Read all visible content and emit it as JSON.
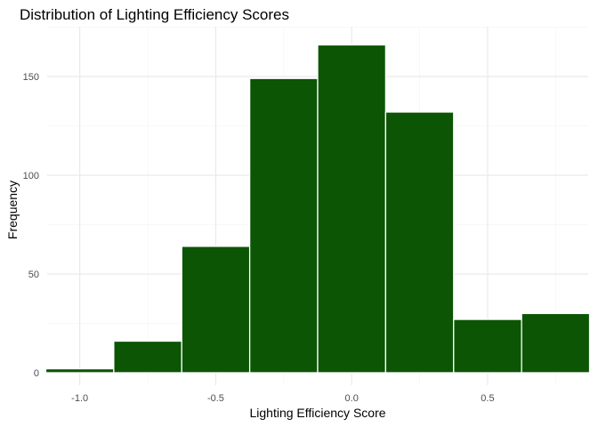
{
  "chart_data": {
    "type": "bar",
    "title": "Distribution of Lighting Efficiency Scores",
    "xlabel": "Lighting Efficiency Score",
    "ylabel": "Frequency",
    "bar_color": "#0b5505",
    "bar_edge_color": "#ffffff",
    "grid": true,
    "xlim": [
      -1.12,
      0.87
    ],
    "ylim": [
      0,
      166
    ],
    "x_ticks": [
      -1.0,
      -0.5,
      0.0,
      0.5
    ],
    "x_tick_labels": [
      "-1.0",
      "-0.5",
      "0.0",
      "0.5"
    ],
    "y_ticks": [
      0,
      50,
      100,
      150
    ],
    "y_tick_labels": [
      "0",
      "50",
      "100",
      "150"
    ],
    "bin_edges": [
      -1.125,
      -0.875,
      -0.625,
      -0.375,
      -0.125,
      0.125,
      0.375,
      0.625,
      0.875
    ],
    "values": [
      2,
      16,
      64,
      149,
      166,
      132,
      27,
      30
    ]
  }
}
